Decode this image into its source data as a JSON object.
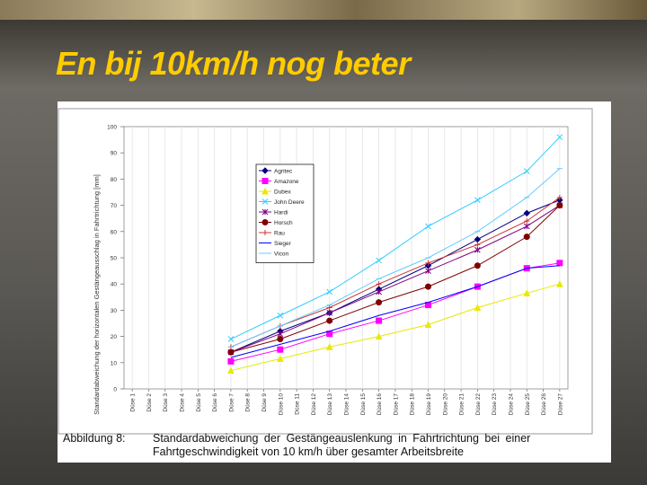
{
  "slide": {
    "title": "En bij 10km/h nog beter"
  },
  "caption": {
    "label": "Abbildung 8:",
    "line1": "Standardabweichung der Gestängeauslenkung in Fahrtrichtung bei einer",
    "line2": "Fahrtgeschwindigkeit von 10 km/h über gesamter Arbeitsbreite"
  },
  "chart_data": {
    "type": "line",
    "y_label": "Standardabweichung der horizontalen Gestängeausschlag in Fahrtrichtung [mm]",
    "x": [
      7,
      10,
      13,
      16,
      19,
      22,
      25,
      27
    ],
    "xlim": [
      0.5,
      27.5
    ],
    "xticks": [
      {
        "value": 1,
        "label": "Düse 1"
      },
      {
        "value": 2,
        "label": "Düse 2"
      },
      {
        "value": 3,
        "label": "Düse 3"
      },
      {
        "value": 4,
        "label": "Düse 4"
      },
      {
        "value": 5,
        "label": "Düse 5"
      },
      {
        "value": 6,
        "label": "Düse 6"
      },
      {
        "value": 7,
        "label": "Düse 7"
      },
      {
        "value": 8,
        "label": "Düse 8"
      },
      {
        "value": 9,
        "label": "Düse 9"
      },
      {
        "value": 10,
        "label": "Düse 10"
      },
      {
        "value": 11,
        "label": "Düse 11"
      },
      {
        "value": 12,
        "label": "Düse 12"
      },
      {
        "value": 13,
        "label": "Düse 13"
      },
      {
        "value": 14,
        "label": "Düse 14"
      },
      {
        "value": 15,
        "label": "Düse 15"
      },
      {
        "value": 16,
        "label": "Düse 16"
      },
      {
        "value": 17,
        "label": "Düse 17"
      },
      {
        "value": 18,
        "label": "Düse 18"
      },
      {
        "value": 19,
        "label": "Düse 19"
      },
      {
        "value": 20,
        "label": "Düse 20"
      },
      {
        "value": 21,
        "label": "Düse 21"
      },
      {
        "value": 22,
        "label": "Düse 22"
      },
      {
        "value": 23,
        "label": "Düse 23"
      },
      {
        "value": 24,
        "label": "Düse 24"
      },
      {
        "value": 25,
        "label": "Düse 25"
      },
      {
        "value": 26,
        "label": "Düse 26"
      },
      {
        "value": 27,
        "label": "Düse 27"
      }
    ],
    "ylim": [
      0,
      100
    ],
    "yticks": [
      0,
      10,
      20,
      30,
      40,
      50,
      60,
      70,
      80,
      90,
      100
    ],
    "grid": "x",
    "legend": "upper-left",
    "series": [
      {
        "name": "Agritec",
        "color": "#000080",
        "marker": "diamond",
        "values": [
          14,
          22,
          29,
          38,
          47,
          57,
          67,
          72
        ]
      },
      {
        "name": "Amazone",
        "color": "#ff00ff",
        "marker": "square",
        "values": [
          10.5,
          15,
          21,
          26,
          32,
          39,
          46,
          48
        ]
      },
      {
        "name": "Dubex",
        "color": "#e8e800",
        "marker": "triangle",
        "values": [
          7,
          11.5,
          16,
          20,
          24.5,
          31,
          36.5,
          40
        ]
      },
      {
        "name": "John Deere",
        "color": "#33ccff",
        "marker": "x",
        "values": [
          19,
          28,
          37,
          49,
          62,
          72,
          83,
          96
        ]
      },
      {
        "name": "Hardi",
        "color": "#800080",
        "marker": "star",
        "values": [
          14,
          21,
          29,
          37,
          45,
          53,
          62,
          70
        ]
      },
      {
        "name": "Horsch",
        "color": "#800000",
        "marker": "circle",
        "values": [
          14,
          19,
          26,
          33,
          39,
          47,
          58,
          70
        ]
      },
      {
        "name": "Rau",
        "color": "#cc3333",
        "marker": "plus",
        "values": [
          16,
          24,
          31,
          40,
          48,
          55,
          64,
          73
        ]
      },
      {
        "name": "Sieger",
        "color": "#0000ff",
        "marker": "none",
        "values": [
          12,
          17,
          22,
          28,
          33,
          39,
          46,
          47
        ]
      },
      {
        "name": "Vicon",
        "color": "#66ccff",
        "marker": "dash",
        "values": [
          16,
          24,
          32,
          42,
          50,
          60,
          73,
          84
        ]
      }
    ]
  }
}
